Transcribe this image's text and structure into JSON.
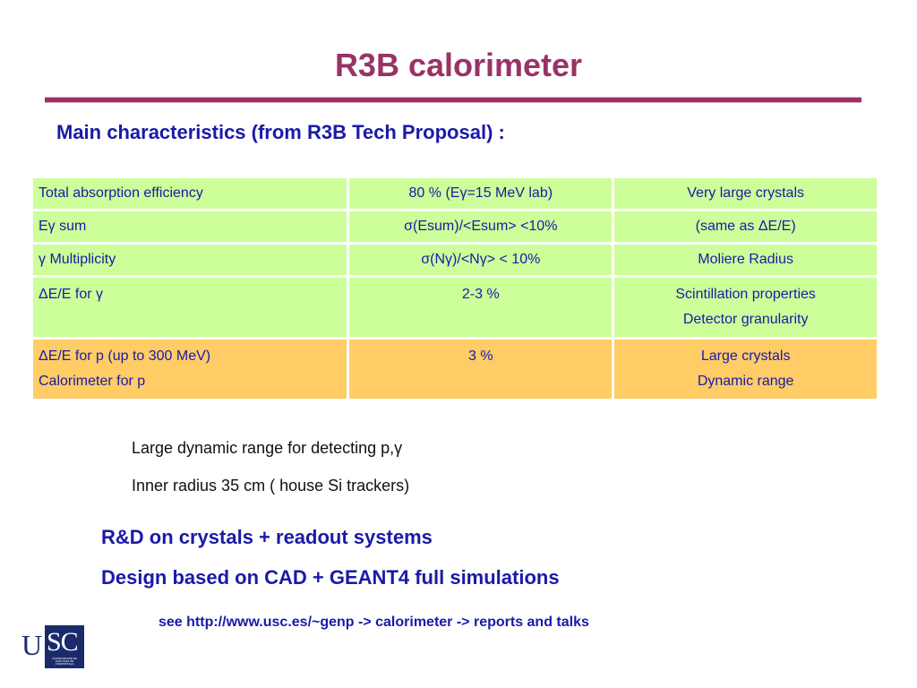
{
  "slide": {
    "title": "R3B calorimeter",
    "subtitle": "Main characteristics (from R3B Tech Proposal)  :"
  },
  "table": {
    "rows": [
      {
        "style": "green",
        "c1": [
          "Total absorption efficiency"
        ],
        "c2": [
          "80 % (Eγ=15 MeV lab)"
        ],
        "c3": [
          "Very large crystals"
        ]
      },
      {
        "style": "green",
        "c1": [
          "Eγ sum"
        ],
        "c2": [
          "σ(Esum)/<Esum>   <10%"
        ],
        "c3": [
          "(same as ΔE/E)"
        ]
      },
      {
        "style": "green",
        "c1": [
          " γ Multiplicity"
        ],
        "c2": [
          "σ(Nγ)/<Nγ>    < 10%"
        ],
        "c3": [
          "Moliere Radius"
        ]
      },
      {
        "style": "green",
        "c1": [
          "ΔE/E for γ"
        ],
        "c2": [
          "2-3 %"
        ],
        "c3": [
          "Scintillation properties",
          "Detector granularity"
        ]
      },
      {
        "style": "orange",
        "c1": [
          "ΔE/E for p (up to 300 MeV)",
          "Calorimeter for p"
        ],
        "c2": [
          "3 %"
        ],
        "c3": [
          "Large crystals",
          "Dynamic range"
        ]
      }
    ]
  },
  "notes": [
    "Large dynamic range for detecting p,γ",
    "Inner radius  35 cm ( house Si trackers)"
  ],
  "highlights": [
    "R&D on crystals + readout systems",
    "Design based on CAD + GEANT4 full simulations"
  ],
  "link": "see http://www.usc.es/~genp ->   calorimeter -> reports and talks",
  "logo": {
    "letters_left": "U",
    "letters_right": "SC",
    "small_text": "UNIVERSIDADE DE SANTIAGO DE COMPOSTELA"
  },
  "colors": {
    "title": "#993366",
    "text_blue": "#1a1aa8",
    "row_green": "#ccff99",
    "row_orange": "#ffcc66",
    "logo_blue": "#1a2b6b"
  }
}
